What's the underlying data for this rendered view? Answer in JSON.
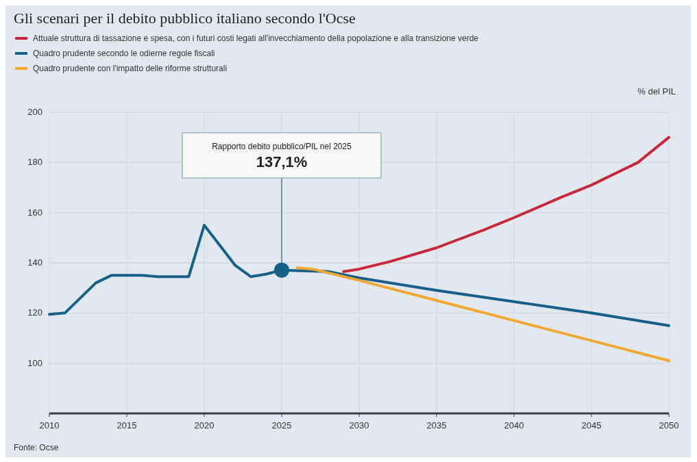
{
  "chart_data": {
    "type": "line",
    "title": "Gli scenari per il debito pubblico italiano secondo l'Ocse",
    "ylabel": "% del PIL",
    "annotations": [
      {
        "text": "Rapporto debito pubblico/PIL nel 2025\n137,1%",
        "x": 2025,
        "y": 137.1
      },
      "Fonte: Ocse"
    ],
    "series": [
      {
        "name": "Attuale struttura di tassazione e spesa, con i futuri costi legati all'invecchiamento della popolazione e alla transizione verde",
        "color": "#c8283c",
        "x": [
          2029,
          2030,
          2032,
          2035,
          2038,
          2040,
          2043,
          2045,
          2048,
          2050
        ],
        "values": [
          136.5,
          137.5,
          140.5,
          146,
          153,
          158,
          166,
          171,
          180,
          190
        ]
      },
      {
        "name": "Quadro prudente secondo le odierne regole fiscali",
        "color": "#17608a",
        "x": [
          2010,
          2011,
          2012,
          2013,
          2014,
          2015,
          2016,
          2017,
          2018,
          2019,
          2020,
          2021,
          2022,
          2023,
          2024,
          2025,
          2028,
          2030,
          2035,
          2040,
          2045,
          2050
        ],
        "values": [
          119.5,
          120,
          126,
          132,
          135,
          135,
          135,
          134.5,
          134.5,
          134.5,
          155,
          147,
          139,
          134.5,
          135.5,
          137.1,
          136.5,
          134,
          129,
          124.5,
          120,
          115
        ]
      },
      {
        "name": "Quadro prudente con l'impatto delle riforme strutturali",
        "color": "#f0a830",
        "x": [
          2026,
          2027,
          2028,
          2030,
          2035,
          2040,
          2045,
          2050
        ],
        "values": [
          138,
          137.5,
          136,
          133,
          125,
          117,
          109,
          101
        ]
      }
    ],
    "xlim": [
      2010,
      2050
    ],
    "xticks": [
      2010,
      2015,
      2020,
      2025,
      2030,
      2035,
      2040,
      2045,
      2050
    ],
    "ylim": [
      80,
      200
    ],
    "yticks": [
      100,
      120,
      140,
      160,
      180,
      200
    ],
    "grid": true,
    "legend": "top left",
    "marker": "none",
    "line_style": "solid"
  }
}
